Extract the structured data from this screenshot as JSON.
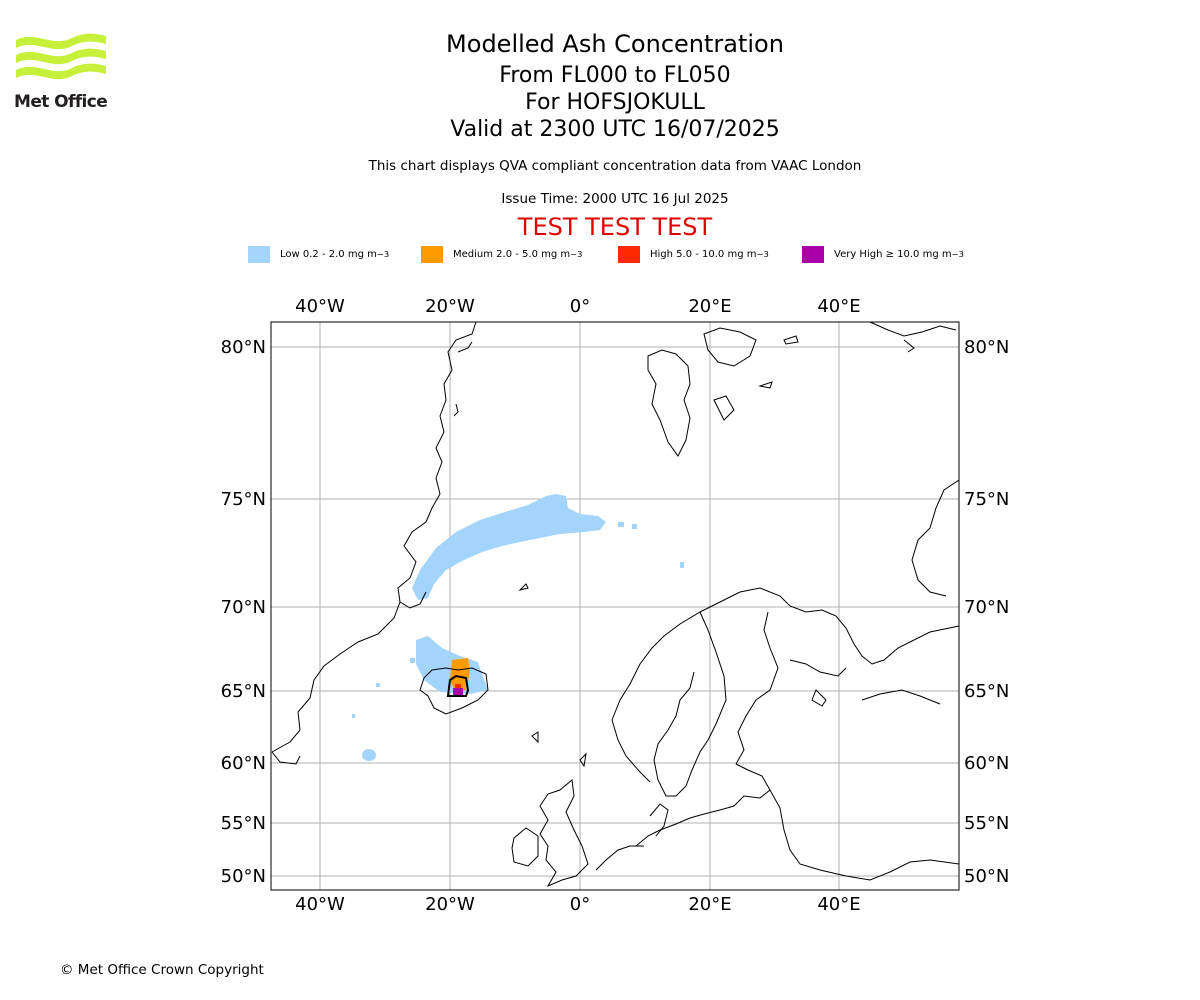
{
  "header": {
    "title": "Modelled Ash Concentration",
    "subtitle_levels": "From FL000 to FL050",
    "subtitle_volcano": "For HOFSJOKULL",
    "subtitle_valid": "Valid at 2300 UTC 16/07/2025",
    "note": "This chart displays QVA compliant concentration data from VAAC London",
    "issue_time": "Issue Time: 2000 UTC 16 Jul 2025",
    "test_banner": "TEST TEST TEST"
  },
  "logo": {
    "text": "Met Office",
    "color": "#c6f03a"
  },
  "legend": [
    {
      "label": "Low 0.2 - 2.0 mg m",
      "color": "#a3d4fb"
    },
    {
      "label": "Medium 2.0 - 5.0 mg m",
      "color": "#ff9b00"
    },
    {
      "label": "High 5.0 - 10.0 mg m",
      "color": "#ff2a00"
    },
    {
      "label": "Very High ≥ 10.0 mg m",
      "color": "#aa00aa"
    }
  ],
  "legend_unit_exponent": "−3",
  "map": {
    "lon_ticks_top": [
      "40°W",
      "20°W",
      "0°",
      "20°E",
      "40°E"
    ],
    "lon_ticks_bottom": [
      "40°W",
      "20°W",
      "0°",
      "20°E",
      "40°E"
    ],
    "lat_ticks_left": [
      "80°N",
      "75°N",
      "70°N",
      "65°N",
      "60°N",
      "55°N",
      "50°N"
    ],
    "lat_ticks_right": [
      "80°N",
      "75°N",
      "70°N",
      "65°N",
      "60°N",
      "55°N",
      "50°N"
    ],
    "gridlines": true
  },
  "footer": {
    "copyright": "© Met Office Crown Copyright"
  }
}
